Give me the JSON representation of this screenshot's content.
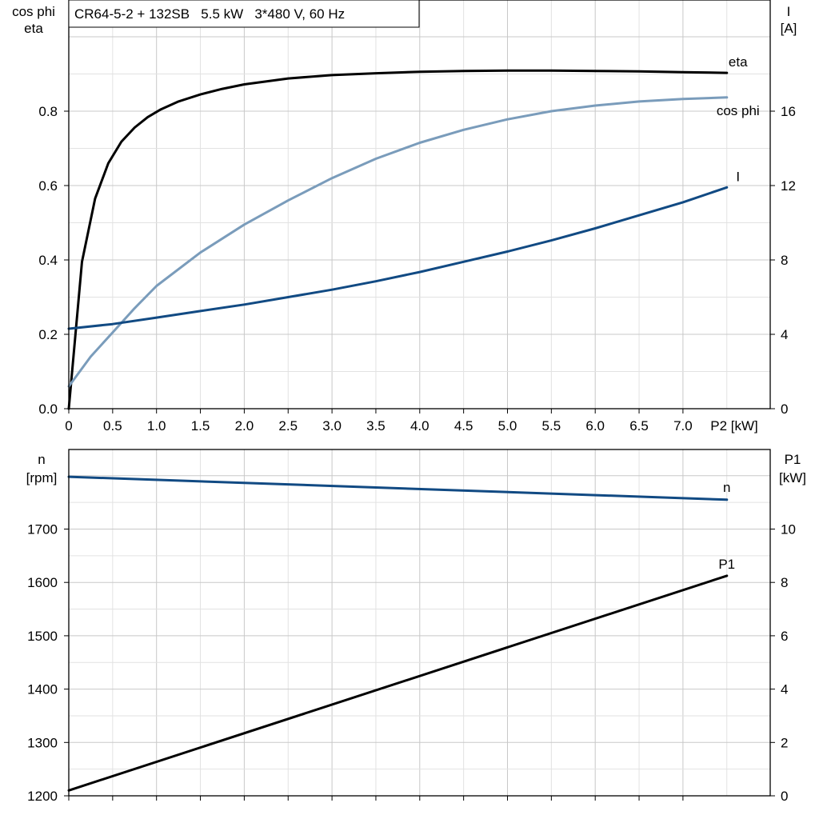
{
  "title": "CR64-5-2 + 132SB   5.5 kW   3*480 V, 60 Hz",
  "colors": {
    "eta": "#000000",
    "cos_phi": "#7a9cbb",
    "current": "#114a83",
    "speed": "#114a83",
    "p1": "#000000",
    "grid": "#c8c8c8",
    "axis": "#000000"
  },
  "top_axes": {
    "left_label_line1": "cos phi",
    "left_label_line2": "eta",
    "right_label_line1": "I",
    "right_label_line2": "[A]",
    "x_label": "P2 [kW]",
    "x_ticks": [
      "0",
      "0.5",
      "1.0",
      "1.5",
      "2.0",
      "2.5",
      "3.0",
      "3.5",
      "4.0",
      "4.5",
      "5.0",
      "5.5",
      "6.0",
      "6.5",
      "7.0"
    ],
    "left_ticks": [
      "0.0",
      "0.2",
      "0.4",
      "0.6",
      "0.8"
    ],
    "right_ticks": [
      "0",
      "4",
      "8",
      "12",
      "16"
    ]
  },
  "bottom_axes": {
    "left_label_line1": "n",
    "left_label_line2": "[rpm]",
    "right_label_line1": "P1",
    "right_label_line2": "[kW]",
    "left_ticks": [
      "1200",
      "1300",
      "1400",
      "1500",
      "1600",
      "1700"
    ],
    "right_ticks": [
      "0",
      "2",
      "4",
      "6",
      "8",
      "10"
    ]
  },
  "chart_data": [
    {
      "type": "line",
      "title": "CR64-5-2 + 132SB   5.5 kW   3*480 V, 60 Hz",
      "xlabel": "P2 [kW]",
      "ylabel": "cos phi / eta",
      "y2label": "I [A]",
      "xlim": [
        0,
        8
      ],
      "ylim": [
        0,
        1.0
      ],
      "y2lim": [
        0,
        20
      ],
      "grid": true,
      "series": [
        {
          "name": "eta",
          "axis": "left",
          "x": [
            0,
            0.15,
            0.3,
            0.45,
            0.6,
            0.75,
            0.9,
            1.05,
            1.25,
            1.5,
            1.75,
            2.0,
            2.5,
            3.0,
            3.5,
            4.0,
            4.5,
            5.0,
            5.5,
            6.0,
            6.5,
            7.0,
            7.5
          ],
          "y": [
            0,
            0.395,
            0.565,
            0.66,
            0.718,
            0.756,
            0.784,
            0.805,
            0.826,
            0.845,
            0.86,
            0.872,
            0.888,
            0.897,
            0.902,
            0.906,
            0.908,
            0.909,
            0.909,
            0.908,
            0.907,
            0.905,
            0.903
          ]
        },
        {
          "name": "cos phi",
          "axis": "left",
          "x": [
            0,
            0.25,
            0.5,
            0.75,
            1.0,
            1.5,
            2.0,
            2.5,
            3.0,
            3.5,
            4.0,
            4.5,
            5.0,
            5.5,
            6.0,
            6.5,
            7.0,
            7.5
          ],
          "y": [
            0.06,
            0.14,
            0.205,
            0.27,
            0.33,
            0.42,
            0.495,
            0.56,
            0.62,
            0.672,
            0.715,
            0.75,
            0.778,
            0.8,
            0.815,
            0.826,
            0.833,
            0.837
          ]
        },
        {
          "name": "I",
          "axis": "right",
          "x": [
            0,
            0.5,
            1.0,
            1.5,
            2.0,
            2.5,
            3.0,
            3.5,
            4.0,
            4.5,
            5.0,
            5.5,
            6.0,
            6.5,
            7.0,
            7.5
          ],
          "y": [
            4.3,
            4.55,
            4.9,
            5.25,
            5.6,
            6.0,
            6.4,
            6.85,
            7.35,
            7.9,
            8.45,
            9.05,
            9.7,
            10.4,
            11.1,
            11.9
          ]
        }
      ]
    },
    {
      "type": "line",
      "xlabel": "P2 [kW]",
      "ylabel": "n [rpm]",
      "y2label": "P1 [kW]",
      "xlim": [
        0,
        8
      ],
      "ylim": [
        1200,
        1800
      ],
      "y2lim": [
        0,
        12
      ],
      "grid": true,
      "series": [
        {
          "name": "n",
          "axis": "left",
          "x": [
            0,
            7.5
          ],
          "y": [
            1798,
            1755
          ]
        },
        {
          "name": "P1",
          "axis": "right",
          "x": [
            0,
            7.5
          ],
          "y": [
            0.2,
            8.25
          ]
        }
      ]
    }
  ]
}
